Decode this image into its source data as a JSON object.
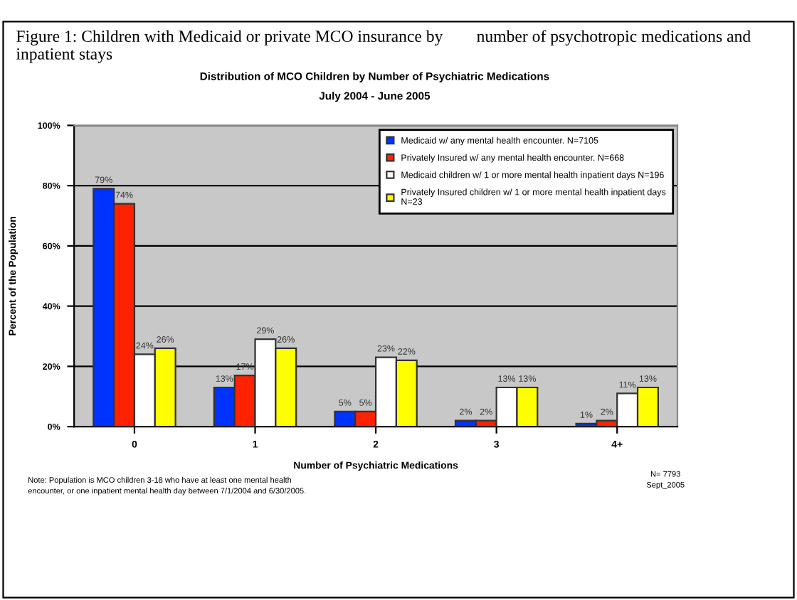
{
  "chart_data": {
    "type": "bar",
    "title": "Figure 1: Children with Medicaid or private MCO insurance by        number of psychotropic medications and inpatient stays",
    "subtitle": "Distribution of MCO Children by Number of Psychiatric Medications\nJuly 2004 - June 2005",
    "xlabel": "Number of Psychiatric Medications",
    "ylabel": "Percent of the Population",
    "categories": [
      "0",
      "1",
      "2",
      "3",
      "4+"
    ],
    "series": [
      {
        "name": "Medicaid w/ any mental health encounter. N=7105",
        "color": "#0033ff",
        "values": [
          79,
          13,
          5,
          2,
          1
        ],
        "value_labels": [
          "79%",
          "13%",
          "5%",
          "2%",
          "1%"
        ]
      },
      {
        "name": "Privately Insured w/ any mental health encounter. N=668",
        "color": "#ff2200",
        "values": [
          74,
          17,
          5,
          2,
          2
        ],
        "value_labels": [
          "74%",
          "17%",
          "5%",
          "2%",
          "2%"
        ]
      },
      {
        "name": "Medicaid children w/ 1 or more mental health inpatient days N=196",
        "color": "#ffffff",
        "values": [
          24,
          29,
          23,
          13,
          11
        ],
        "value_labels": [
          "24%",
          "29%",
          "23%",
          "13%",
          "11%"
        ]
      },
      {
        "name": "Privately Insured children w/ 1 or more mental health inpatient days\nN=23",
        "color": "#ffff00",
        "values": [
          26,
          26,
          22,
          13,
          13
        ],
        "value_labels": [
          "26%",
          "26%",
          "22%",
          "13%",
          "13%"
        ]
      }
    ],
    "ylim": [
      0,
      100
    ],
    "yticks": [
      {
        "value": 0,
        "label": "0%"
      },
      {
        "value": 20,
        "label": "20%"
      },
      {
        "value": 40,
        "label": "40%"
      },
      {
        "value": 60,
        "label": "60%"
      },
      {
        "value": 80,
        "label": "80%"
      },
      {
        "value": 100,
        "label": "100%"
      }
    ],
    "grid": "y",
    "legend": "top right",
    "annotations": [
      "Note: Population is MCO children 3-18 who have at least one mental health\nencounter, or one inpatient mental health day between 7/1/2004 and 6/30/2005.",
      "N= 7793\nSept_2005"
    ]
  }
}
